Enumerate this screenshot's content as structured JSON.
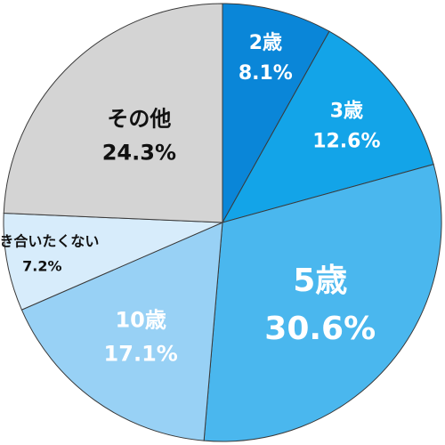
{
  "chart_data": {
    "type": "pie",
    "start_angle_deg": 0,
    "direction": "clockwise",
    "slices": [
      {
        "label": "2歳",
        "value_label": "8.1%",
        "value": 8.1,
        "color": "#0a86d8",
        "text_color": "#ffffff"
      },
      {
        "label": "3歳",
        "value_label": "12.6%",
        "value": 12.6,
        "color": "#13a4e8",
        "text_color": "#ffffff"
      },
      {
        "label": "5歳",
        "value_label": "30.6%",
        "value": 30.6,
        "color": "#4ab7ee",
        "text_color": "#ffffff"
      },
      {
        "label": "10歳",
        "value_label": "17.1%",
        "value": 17.1,
        "color": "#98d1f5",
        "text_color": "#ffffff"
      },
      {
        "label": "付き合いたくない",
        "value_label": "7.2%",
        "value": 7.2,
        "color": "#d7ecfb",
        "text_color": "#111111"
      },
      {
        "label": "その他",
        "value_label": "24.3%",
        "value": 24.3,
        "color": "#d4d4d4",
        "text_color": "#111111"
      }
    ]
  }
}
